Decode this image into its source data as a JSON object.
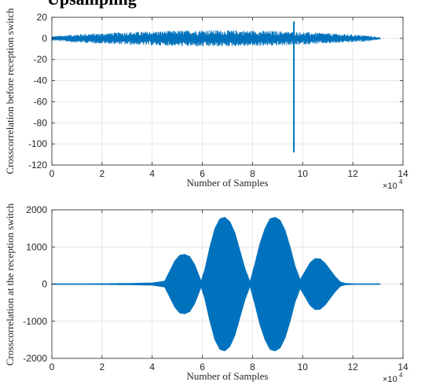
{
  "title_fragment": "Upsampling",
  "chart_data": [
    {
      "type": "line",
      "xlabel": "Number of Samples",
      "ylabel": "Crosscorrelation before reception switch",
      "xlim": [
        0,
        140000
      ],
      "ylim": [
        -120,
        20
      ],
      "xticks": [
        0,
        20000,
        40000,
        60000,
        80000,
        100000,
        120000,
        140000
      ],
      "xtick_labels": [
        "0",
        "2",
        "4",
        "6",
        "8",
        "10",
        "12",
        "14"
      ],
      "yticks": [
        20,
        0,
        -20,
        -40,
        -60,
        -80,
        -100,
        -120
      ],
      "ytick_labels": [
        "20",
        "0",
        "-20",
        "-40",
        "-60",
        "-80",
        "-100",
        "-120"
      ],
      "x_multiplier": "×10",
      "x_multiplier_exp": "4",
      "grid": true,
      "series": [
        {
          "color": "#0072BD",
          "noise_span": [
            0,
            131000
          ],
          "envelope": {
            "x": [
              0,
              10000,
              30000,
              60000,
              90000,
              110000,
              125000,
              131000
            ],
            "y": [
              2,
              4,
              6,
              8,
              7,
              5,
              3,
              1
            ]
          },
          "spike": {
            "x": 96500,
            "min": -108,
            "max": 16
          }
        }
      ]
    },
    {
      "type": "line",
      "xlabel": "Number of Samples",
      "ylabel": "Crosscorrelation at the reception switch",
      "xlim": [
        0,
        140000
      ],
      "ylim": [
        -2000,
        2000
      ],
      "xticks": [
        0,
        20000,
        40000,
        60000,
        80000,
        100000,
        120000,
        140000
      ],
      "xtick_labels": [
        "0",
        "2",
        "4",
        "6",
        "8",
        "10",
        "12",
        "14"
      ],
      "yticks": [
        2000,
        1000,
        0,
        -1000,
        -2000
      ],
      "ytick_labels": [
        "2000",
        "1000",
        "0",
        "-1000",
        "-2000"
      ],
      "x_multiplier": "×10",
      "x_multiplier_exp": "4",
      "grid": true,
      "series": [
        {
          "color": "#0072BD",
          "envelope": {
            "x": [
              0,
              10000,
              20000,
              30000,
              40000,
              45000,
              47000,
              49000,
              51000,
              53000,
              55000,
              57000,
              59500,
              61000,
              63000,
              65000,
              67000,
              69000,
              71000,
              73000,
              75000,
              77000,
              79000,
              81000,
              83000,
              85000,
              87000,
              89000,
              91000,
              93000,
              95000,
              97000,
              99000,
              101000,
              103000,
              105000,
              107000,
              109000,
              111000,
              113000,
              115000,
              117000,
              120000,
              131000
            ],
            "y": [
              5,
              8,
              12,
              18,
              30,
              80,
              350,
              620,
              780,
              800,
              740,
              520,
              80,
              400,
              1000,
              1500,
              1760,
              1800,
              1680,
              1380,
              900,
              420,
              60,
              560,
              1100,
              1500,
              1760,
              1800,
              1720,
              1450,
              1000,
              480,
              120,
              350,
              580,
              690,
              680,
              560,
              380,
              200,
              60,
              20,
              10,
              5
            ]
          }
        }
      ]
    }
  ]
}
